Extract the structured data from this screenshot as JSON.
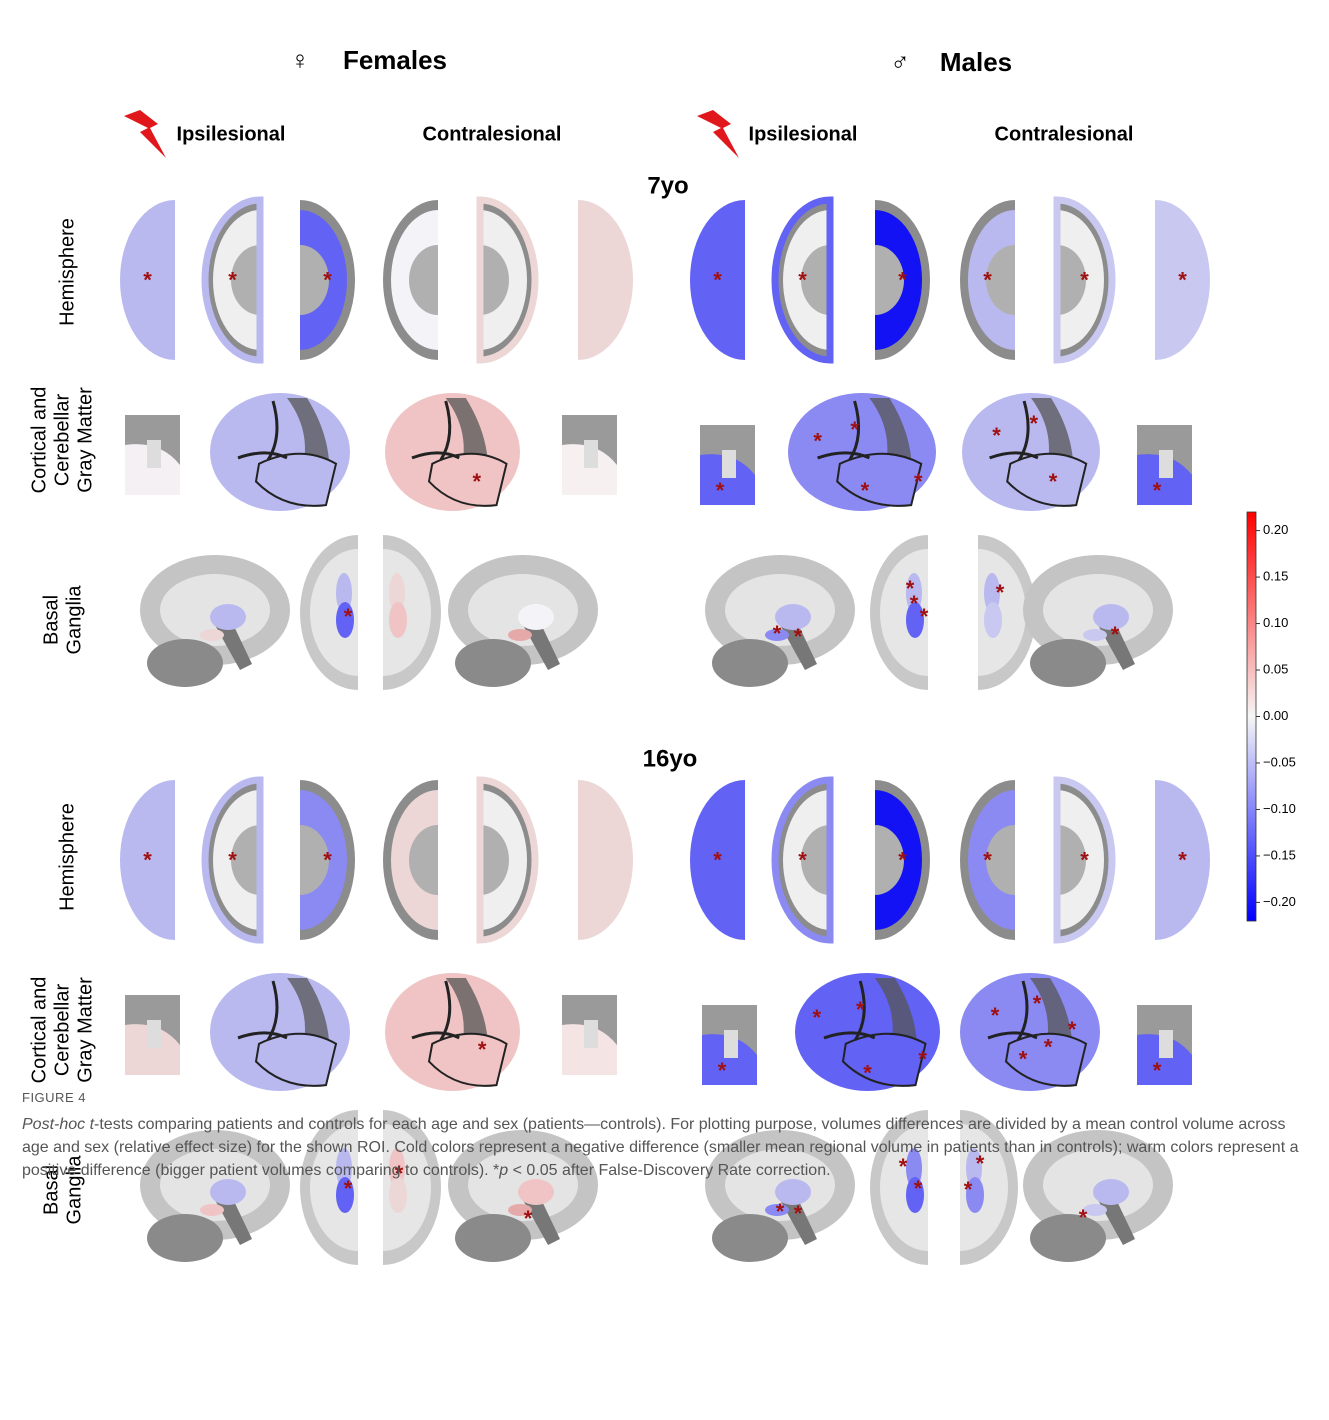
{
  "header": {
    "female_symbol": "♀",
    "female_title": "Females",
    "male_symbol": "♂",
    "male_title": "Males",
    "columns": [
      "Ipsilesional",
      "Contralesional",
      "Ipsilesional",
      "Contralesional"
    ]
  },
  "ages": [
    "7yo",
    "16yo"
  ],
  "row_labels": {
    "hemisphere": "Hemisphere",
    "gray_matter": [
      "Cortical and",
      "Cerebellar",
      "Gray Matter"
    ],
    "basal_ganglia": [
      "Basal",
      "Ganglia"
    ]
  },
  "significance_marker": "*",
  "colorbar": {
    "lim": [
      -0.22,
      0.22
    ],
    "ticks": [
      {
        "value": 0.2,
        "label": "0.20"
      },
      {
        "value": 0.15,
        "label": "0.15"
      },
      {
        "value": 0.1,
        "label": "0.10"
      },
      {
        "value": 0.05,
        "label": "0.05"
      },
      {
        "value": 0,
        "label": "0.00"
      },
      {
        "value": -0.05,
        "label": "−0.05"
      },
      {
        "value": -0.1,
        "label": "−0.10"
      },
      {
        "value": -0.15,
        "label": "−0.15"
      },
      {
        "value": -0.2,
        "label": "−0.20"
      }
    ]
  },
  "caption": {
    "label": "FIGURE 4",
    "parts": [
      "Post-hoc t",
      "-tests comparing patients and controls for each age and sex (patients—controls). For plotting purpose, volumes differences are divided by a mean control volume across age and sex (relative effect size) for the shown ROI. Cold colors represent a negative difference (smaller mean regional volume in patients than in controls); warm colors represent a positive difference (bigger patient volumes comparing to controls). *",
      "p",
      " < 0.05 after False-Discovery Rate correction."
    ]
  }
}
